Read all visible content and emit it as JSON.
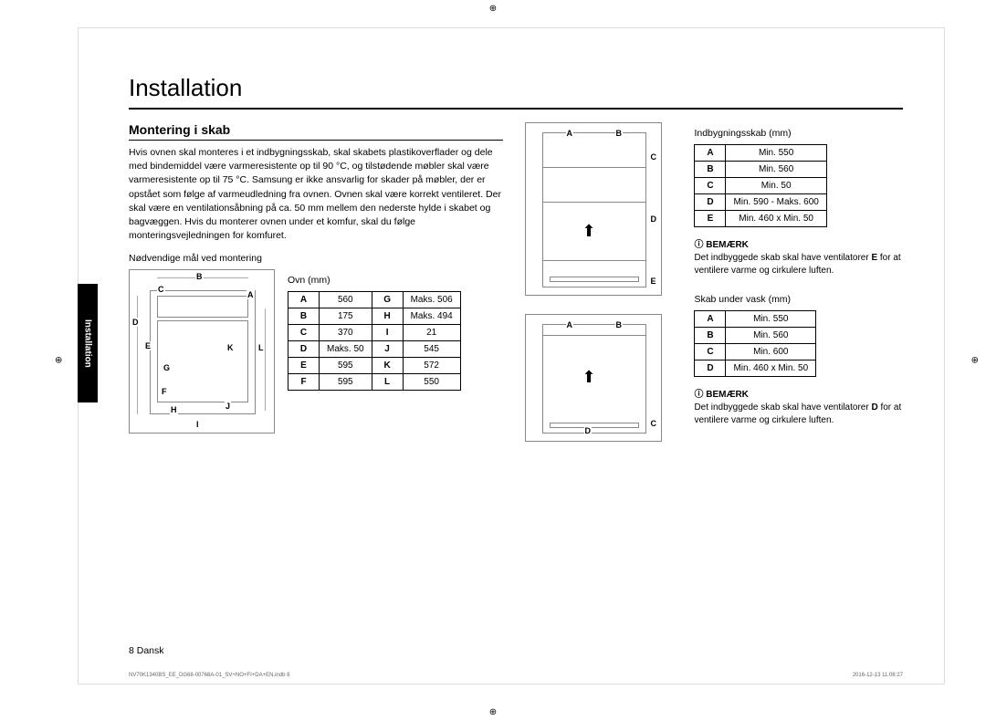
{
  "doc": {
    "title": "Installation",
    "section": "Montering i skab",
    "body": "Hvis ovnen skal monteres i et indbygningsskab, skal skabets plastikoverflader og dele med bindemiddel være varmeresistente op til 90 °C, og tilstødende møbler skal være varmeresistente op til 75 °C. Samsung er ikke ansvarlig for skader på møbler, der er opstået som følge af varmeudledning fra ovnen. Ovnen skal være korrekt ventileret. Der skal være en ventilationsåbning på ca. 50 mm mellem den nederste hylde i skabet og bagvæggen. Hvis du monterer ovnen under et komfur, skal du følge monteringsvejledningen for komfuret.",
    "sub1": "Nødvendige mål ved montering",
    "tab1_cap": "Ovn (mm)",
    "sidebar": "Installation",
    "tab2_cap": "Indbygningsskab (mm)",
    "tab3_cap": "Skab under vask (mm)",
    "note_title": "BEMÆRK",
    "note1_a": "Det indbyggede skab skal have ventilatorer ",
    "note1_b": "E",
    "note1_c": " for at ventilere varme og cirkulere luften.",
    "note2_a": "Det indbyggede skab skal have ventilatorer ",
    "note2_b": "D",
    "note2_c": " for at ventilere varme og cirkulere luften.",
    "page": "8  Dansk",
    "footer_l": "NV70K1340BS_EE_DG68-00768A-01_SV+NO+FI+DA+EN.indb   8",
    "footer_r": "2016-12-13   11:08:27"
  },
  "ovn": [
    [
      "A",
      "560",
      "G",
      "Maks. 506"
    ],
    [
      "B",
      "175",
      "H",
      "Maks. 494"
    ],
    [
      "C",
      "370",
      "I",
      "21"
    ],
    [
      "D",
      "Maks. 50",
      "J",
      "545"
    ],
    [
      "E",
      "595",
      "K",
      "572"
    ],
    [
      "F",
      "595",
      "L",
      "550"
    ]
  ],
  "cab": [
    [
      "A",
      "Min. 550"
    ],
    [
      "B",
      "Min. 560"
    ],
    [
      "C",
      "Min. 50"
    ],
    [
      "D",
      "Min. 590 - Maks. 600"
    ],
    [
      "E",
      "Min. 460 x Min. 50"
    ]
  ],
  "sink": [
    [
      "A",
      "Min. 550"
    ],
    [
      "B",
      "Min. 560"
    ],
    [
      "C",
      "Min. 600"
    ],
    [
      "D",
      "Min. 460 x Min. 50"
    ]
  ],
  "fig1_labels": [
    "A",
    "B",
    "C",
    "D",
    "E",
    "F",
    "G",
    "H",
    "I",
    "J",
    "K",
    "L"
  ],
  "fig2_labels": [
    "A",
    "B",
    "C",
    "D",
    "E"
  ],
  "fig3_labels": [
    "A",
    "B",
    "C",
    "D"
  ]
}
